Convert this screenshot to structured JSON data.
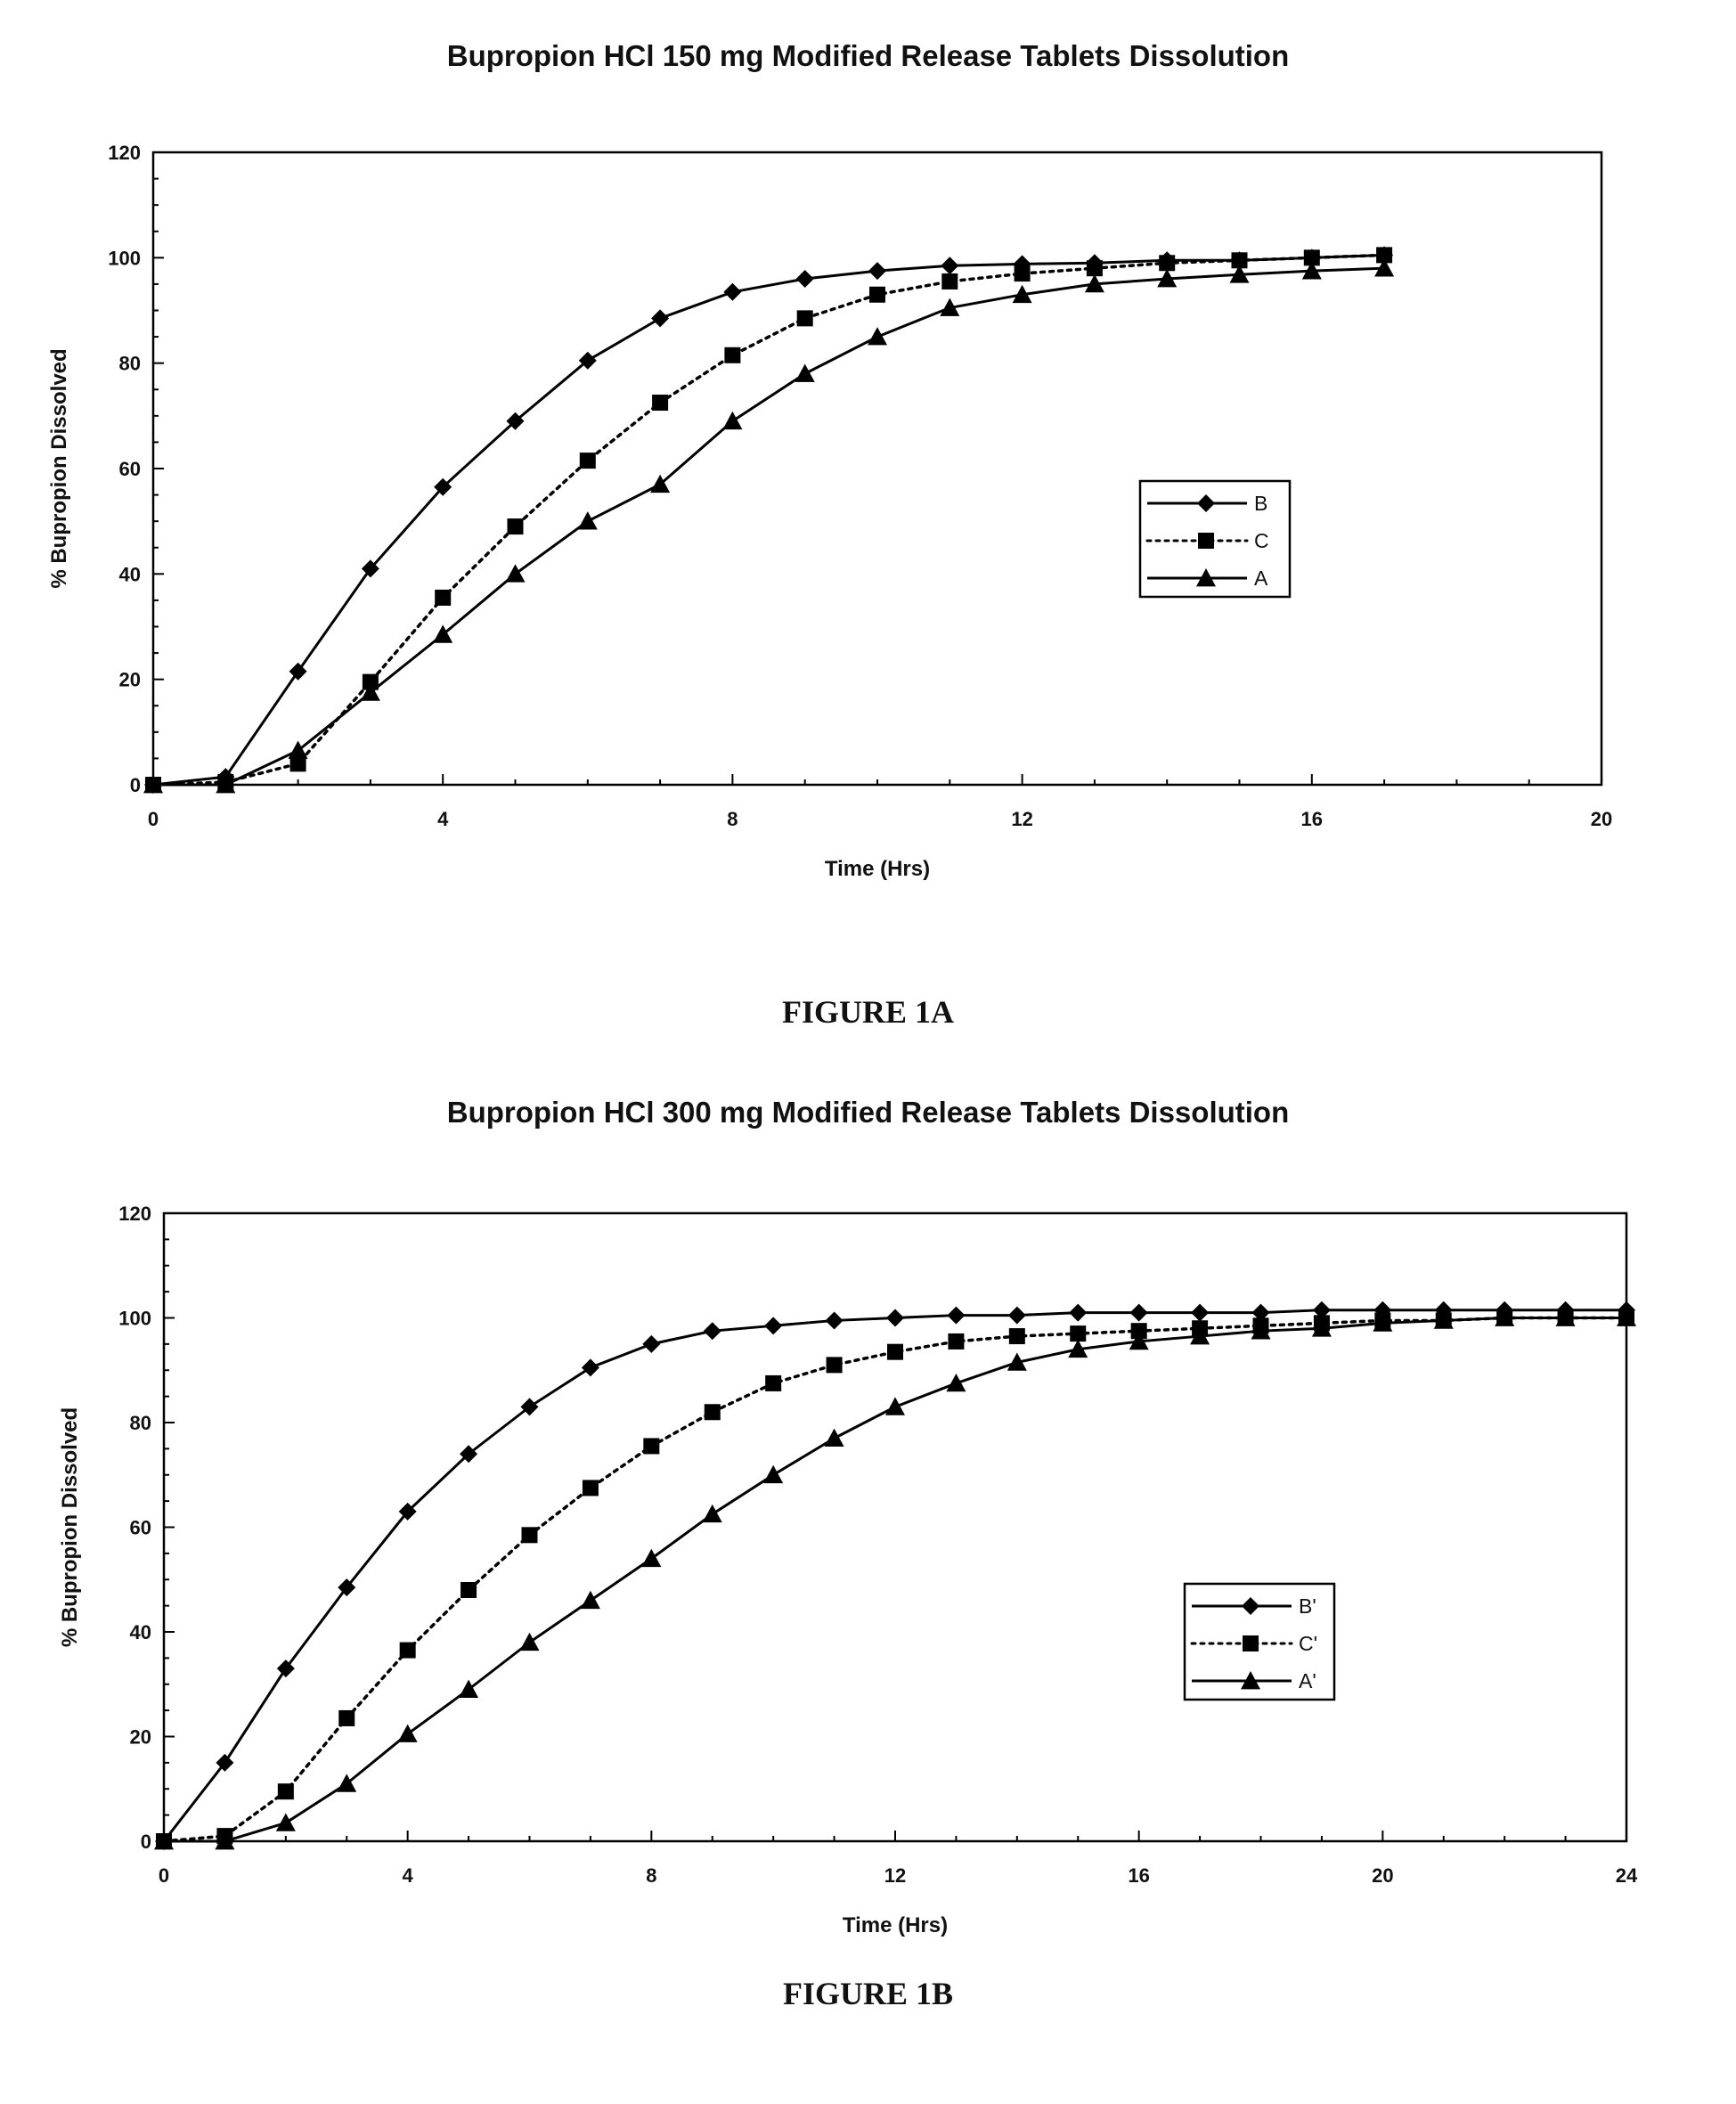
{
  "charts": [
    {
      "caption": "FIGURE 1A",
      "chart_data": {
        "type": "line",
        "title": "Bupropion HCl 150 mg Modified Release Tablets Dissolution",
        "xlabel": "Time (Hrs)",
        "ylabel": "% Bupropion Dissolved",
        "xlim": [
          0,
          20
        ],
        "ylim": [
          0,
          120
        ],
        "xticks": [
          0,
          4,
          8,
          12,
          16,
          20
        ],
        "yticks": [
          0,
          20,
          40,
          60,
          80,
          100,
          120
        ],
        "grid": false,
        "legend_position": "right",
        "series": [
          {
            "name": "B",
            "marker": "diamond",
            "line": "solid",
            "x": [
              0,
              1,
              2,
              3,
              4,
              5,
              6,
              7,
              8,
              9,
              10,
              11,
              12,
              13,
              14,
              15,
              16,
              17
            ],
            "y": [
              0,
              1.5,
              21.5,
              41,
              56.5,
              69,
              80.5,
              88.5,
              93.5,
              96,
              97.5,
              98.5,
              98.8,
              99,
              99.5,
              99.5,
              100,
              100.5
            ]
          },
          {
            "name": "C",
            "marker": "square",
            "line": "dotted",
            "x": [
              0,
              1,
              2,
              3,
              4,
              5,
              6,
              7,
              8,
              9,
              10,
              11,
              12,
              13,
              14,
              15,
              16,
              17
            ],
            "y": [
              0,
              0.5,
              4,
              19.5,
              35.5,
              49,
              61.5,
              72.5,
              81.5,
              88.5,
              93,
              95.5,
              97,
              98,
              99,
              99.5,
              100,
              100.5
            ]
          },
          {
            "name": "A",
            "marker": "triangle",
            "line": "solid",
            "x": [
              0,
              1,
              2,
              3,
              4,
              5,
              6,
              7,
              8,
              9,
              10,
              11,
              12,
              13,
              14,
              15,
              16,
              17
            ],
            "y": [
              0,
              0,
              6.5,
              17.5,
              28.5,
              40,
              50,
              57,
              69,
              78,
              85,
              90.5,
              93,
              95,
              96,
              96.8,
              97.5,
              98
            ]
          }
        ]
      }
    },
    {
      "caption": "FIGURE 1B",
      "chart_data": {
        "type": "line",
        "title": "Bupropion HCl 300 mg Modified Release Tablets Dissolution",
        "xlabel": "Time (Hrs)",
        "ylabel": "% Bupropion Dissolved",
        "xlim": [
          0,
          24
        ],
        "ylim": [
          0,
          120
        ],
        "xticks": [
          0,
          4,
          8,
          12,
          16,
          20,
          24
        ],
        "yticks": [
          0,
          20,
          40,
          60,
          80,
          100,
          120
        ],
        "grid": false,
        "legend_position": "right",
        "series": [
          {
            "name": "B'",
            "marker": "diamond",
            "line": "solid",
            "x": [
              0,
              1,
              2,
              3,
              4,
              5,
              6,
              7,
              8,
              9,
              10,
              11,
              12,
              13,
              14,
              15,
              16,
              17,
              18,
              19,
              20,
              21,
              22,
              23,
              24
            ],
            "y": [
              0,
              15,
              33,
              48.5,
              63,
              74,
              83,
              90.5,
              95,
              97.5,
              98.5,
              99.5,
              100,
              100.5,
              100.5,
              101,
              101,
              101,
              101,
              101.5,
              101.5,
              101.5,
              101.5,
              101.5,
              101.5
            ]
          },
          {
            "name": "C'",
            "marker": "square",
            "line": "dotted",
            "x": [
              0,
              1,
              2,
              3,
              4,
              5,
              6,
              7,
              8,
              9,
              10,
              11,
              12,
              13,
              14,
              15,
              16,
              17,
              18,
              19,
              20,
              21,
              22,
              23,
              24
            ],
            "y": [
              0,
              1,
              9.5,
              23.5,
              36.5,
              48,
              58.5,
              67.5,
              75.5,
              82,
              87.5,
              91,
              93.5,
              95.5,
              96.5,
              97,
              97.5,
              98,
              98.5,
              99,
              99.5,
              99.5,
              100,
              100,
              100
            ]
          },
          {
            "name": "A'",
            "marker": "triangle",
            "line": "solid",
            "x": [
              0,
              1,
              2,
              3,
              4,
              5,
              6,
              7,
              8,
              9,
              10,
              11,
              12,
              13,
              14,
              15,
              16,
              17,
              18,
              19,
              20,
              21,
              22,
              23,
              24
            ],
            "y": [
              0,
              0,
              3.5,
              11,
              20.5,
              29,
              38,
              46,
              54,
              62.5,
              70,
              77,
              83,
              87.5,
              91.5,
              94,
              95.5,
              96.5,
              97.5,
              98,
              99,
              99.5,
              100,
              100,
              100
            ]
          }
        ]
      }
    }
  ]
}
